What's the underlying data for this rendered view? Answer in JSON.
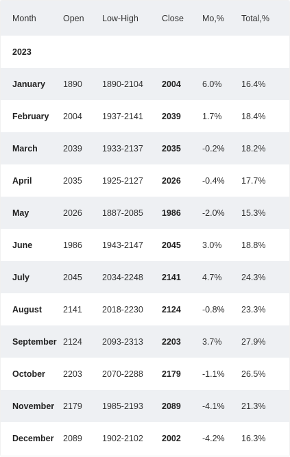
{
  "table": {
    "headers": {
      "month": "Month",
      "open": "Open",
      "low_high": "Low-High",
      "close": "Close",
      "mo": "Mo,%",
      "total": "Total,%"
    },
    "year_label": "2023",
    "rows": [
      {
        "month": "January",
        "open": "1890",
        "low_high": "1890-2104",
        "close": "2004",
        "mo": "6.0%",
        "total": "16.4%"
      },
      {
        "month": "February",
        "open": "2004",
        "low_high": "1937-2141",
        "close": "2039",
        "mo": "1.7%",
        "total": "18.4%"
      },
      {
        "month": "March",
        "open": "2039",
        "low_high": "1933-2137",
        "close": "2035",
        "mo": "-0.2%",
        "total": "18.2%"
      },
      {
        "month": "April",
        "open": "2035",
        "low_high": "1925-2127",
        "close": "2026",
        "mo": "-0.4%",
        "total": "17.7%"
      },
      {
        "month": "May",
        "open": "2026",
        "low_high": "1887-2085",
        "close": "1986",
        "mo": "-2.0%",
        "total": "15.3%"
      },
      {
        "month": "June",
        "open": "1986",
        "low_high": "1943-2147",
        "close": "2045",
        "mo": "3.0%",
        "total": "18.8%"
      },
      {
        "month": "July",
        "open": "2045",
        "low_high": "2034-2248",
        "close": "2141",
        "mo": "4.7%",
        "total": "24.3%"
      },
      {
        "month": "August",
        "open": "2141",
        "low_high": "2018-2230",
        "close": "2124",
        "mo": "-0.8%",
        "total": "23.3%"
      },
      {
        "month": "September",
        "open": "2124",
        "low_high": "2093-2313",
        "close": "2203",
        "mo": "3.7%",
        "total": "27.9%"
      },
      {
        "month": "October",
        "open": "2203",
        "low_high": "2070-2288",
        "close": "2179",
        "mo": "-1.1%",
        "total": "26.5%"
      },
      {
        "month": "November",
        "open": "2179",
        "low_high": "1985-2193",
        "close": "2089",
        "mo": "-4.1%",
        "total": "21.3%"
      },
      {
        "month": "December",
        "open": "2089",
        "low_high": "1902-2102",
        "close": "2002",
        "mo": "-4.2%",
        "total": "16.3%"
      }
    ]
  },
  "colors": {
    "stripe": "#eef0f3",
    "background": "#ffffff",
    "text": "#222222"
  }
}
